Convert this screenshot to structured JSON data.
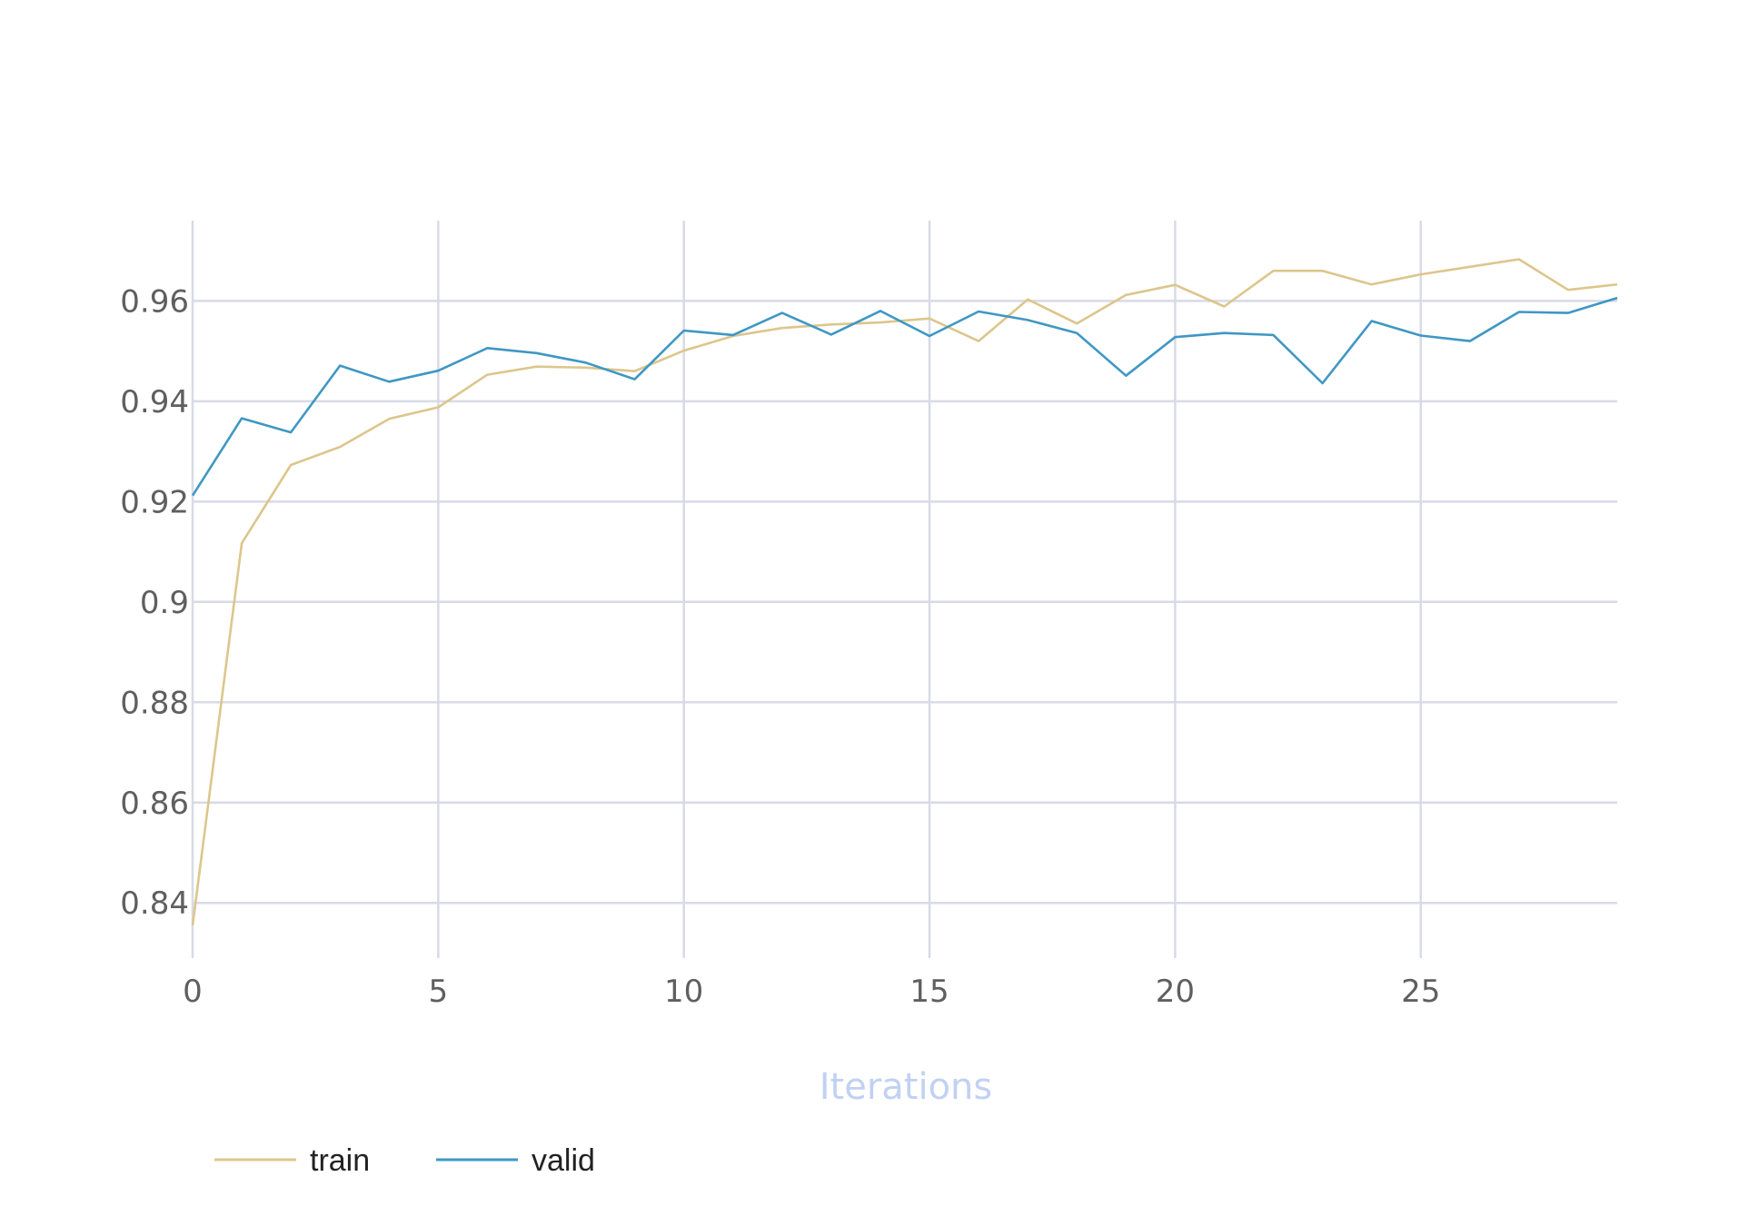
{
  "chart_data": {
    "type": "line",
    "title": "",
    "xlabel": "Iterations",
    "ylabel": "",
    "xlim": [
      0,
      29
    ],
    "ylim": [
      0.829,
      0.976
    ],
    "x_ticks": [
      0,
      5,
      10,
      15,
      20,
      25
    ],
    "x_tick_labels": [
      "0",
      "5",
      "10",
      "15",
      "20",
      "25"
    ],
    "y_ticks": [
      0.84,
      0.86,
      0.88,
      0.9,
      0.92,
      0.94,
      0.96
    ],
    "y_tick_labels": [
      "0.84",
      "0.86",
      "0.88",
      "0.9",
      "0.92",
      "0.94",
      "0.96"
    ],
    "grid": true,
    "legend_position": "bottom-left",
    "x": [
      0,
      1,
      2,
      3,
      4,
      5,
      6,
      7,
      8,
      9,
      10,
      11,
      12,
      13,
      14,
      15,
      16,
      17,
      18,
      19,
      20,
      21,
      22,
      23,
      24,
      25,
      26,
      27,
      28,
      29
    ],
    "series": [
      {
        "name": "train",
        "color": "#dcc68c",
        "values": [
          0.8355,
          0.9117,
          0.9273,
          0.9309,
          0.9365,
          0.9388,
          0.9453,
          0.9469,
          0.9467,
          0.946,
          0.9501,
          0.953,
          0.9546,
          0.9553,
          0.9557,
          0.9565,
          0.952,
          0.9603,
          0.9555,
          0.9612,
          0.9632,
          0.9589,
          0.966,
          0.966,
          0.9633,
          0.9653,
          0.9668,
          0.9683,
          0.9622,
          0.9633
        ]
      },
      {
        "name": "valid",
        "color": "#3f97c4",
        "values": [
          0.9212,
          0.9366,
          0.9338,
          0.9471,
          0.9439,
          0.9461,
          0.9506,
          0.9496,
          0.9477,
          0.9444,
          0.9541,
          0.9532,
          0.9576,
          0.9533,
          0.958,
          0.953,
          0.9579,
          0.9562,
          0.9536,
          0.9451,
          0.9528,
          0.9536,
          0.9532,
          0.9436,
          0.956,
          0.9531,
          0.952,
          0.9578,
          0.9576,
          0.9606
        ]
      }
    ],
    "colors": {
      "xlabel": "#c1d1f3",
      "tick_text": "#5f5f5f",
      "grid": "#d8dae6"
    }
  }
}
